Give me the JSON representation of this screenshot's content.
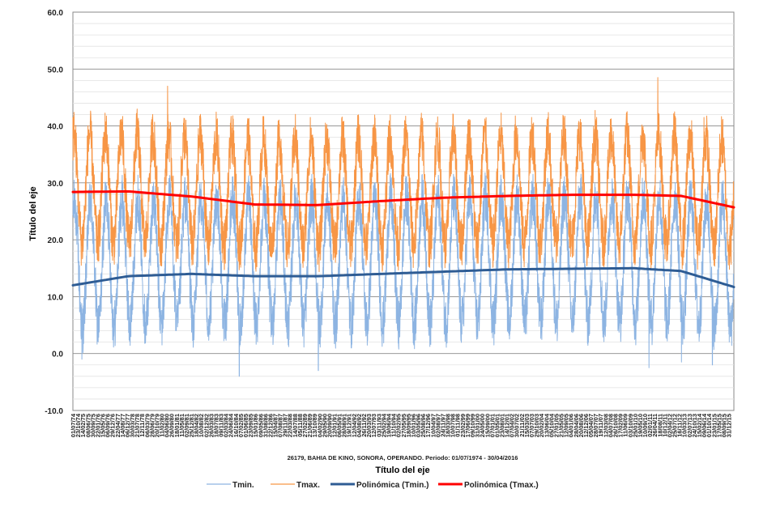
{
  "chart_data": {
    "type": "line",
    "title": "",
    "subtitle": "26179, BAHIA DE KINO, SONORA, OPERANDO. Periodo: 01/07/1974 - 30/04/2016",
    "xlabel": "Título del eje",
    "ylabel": "Título del eje",
    "ylim": [
      -10,
      60
    ],
    "yticks": [
      "60.0",
      "50.0",
      "40.0",
      "30.0",
      "20.0",
      "10.0",
      "0.0",
      "-10.0"
    ],
    "ytick_values": [
      60,
      50,
      40,
      30,
      20,
      10,
      0,
      -10
    ],
    "negative_tick_color": "#e00000",
    "x_range": [
      "01/07/74",
      "30/04/16"
    ],
    "x_ticks": [
      "01/07/74",
      "23/10/74",
      "14/02/75",
      "08/06/75",
      "30/09/75",
      "22/01/76",
      "15/05/76",
      "06/09/76",
      "29/12/76",
      "22/04/77",
      "14/08/77",
      "06/12/77",
      "30/03/78",
      "21/07/78",
      "12/11/78",
      "06/03/79",
      "28/06/79",
      "20/10/79",
      "11/02/80",
      "04/06/80",
      "26/09/80",
      "18/01/81",
      "11/05/81",
      "02/09/81",
      "25/12/81",
      "18/04/82",
      "10/08/82",
      "02/12/82",
      "26/03/83",
      "18/07/83",
      "09/11/83",
      "02/03/84",
      "24/06/84",
      "16/10/84",
      "07/02/85",
      "01/06/85",
      "23/09/85",
      "15/01/86",
      "09/05/86",
      "31/08/86",
      "22/12/86",
      "15/04/87",
      "07/08/87",
      "29/11/87",
      "22/03/88",
      "14/07/88",
      "05/11/88",
      "27/02/89",
      "21/06/89",
      "13/10/89",
      "04/02/90",
      "29/05/90",
      "20/09/90",
      "12/01/91",
      "06/05/91",
      "28/08/91",
      "19/12/91",
      "12/04/92",
      "04/08/92",
      "26/11/92",
      "20/03/93",
      "12/07/93",
      "03/11/93",
      "25/02/94",
      "19/06/94",
      "11/10/94",
      "02/02/95",
      "27/05/95",
      "18/09/95",
      "10/01/96",
      "03/05/96",
      "25/08/96",
      "17/12/96",
      "10/04/97",
      "02/08/97",
      "24/11/97",
      "18/03/98",
      "10/07/98",
      "01/11/98",
      "23/02/99",
      "17/06/99",
      "09/10/99",
      "31/01/00",
      "24/05/00",
      "15/09/00",
      "07/01/01",
      "01/05/01",
      "23/08/01",
      "14/12/01",
      "07/04/02",
      "30/07/02",
      "21/11/02",
      "15/03/03",
      "07/07/03",
      "29/10/03",
      "20/02/04",
      "13/06/04",
      "05/10/04",
      "27/01/05",
      "21/05/05",
      "12/09/05",
      "04/01/06",
      "28/04/06",
      "20/08/06",
      "12/12/06",
      "05/04/07",
      "28/07/07",
      "19/11/07",
      "12/03/08",
      "04/07/08",
      "26/10/08",
      "17/02/09",
      "11/06/09",
      "03/10/09",
      "25/01/10",
      "19/05/10",
      "10/09/10",
      "02/01/11",
      "26/04/11",
      "18/08/11",
      "10/12/11",
      "02/04/12",
      "25/07/12",
      "16/11/12",
      "10/03/13",
      "02/07/13",
      "24/10/13",
      "15/02/14",
      "09/06/14",
      "01/10/14",
      "23/01/15",
      "17/05/15",
      "08/09/15",
      "31/12/15"
    ],
    "x_tick_labels": [
      "01/07/74",
      "23/10/74",
      "14/02/75",
      "08/06/75",
      "30/09/75",
      "22/01/76",
      "15/05/76",
      "06/09/76",
      "29/12/76",
      "22/04/77",
      "14/08/77",
      "06/12/77",
      "30/03/78",
      "21/07/78",
      "12/11/78",
      "06/03/79",
      "28/06/79",
      "20/10/79",
      "11/02/80",
      "04/06/80",
      "26/09/80",
      "18/01/81",
      "11/05/81",
      "02/09/81",
      "25/12/81",
      "18/04/82",
      "10/08/82",
      "02/12/82",
      "26/03/83",
      "18/07/83",
      "09/11/83",
      "02/03/84",
      "24/06/84",
      "16/10/84",
      "07/02/85",
      "01/06/85",
      "23/09/85",
      "15/01/86",
      "09/05/86",
      "31/08/86",
      "22/12/86",
      "15/04/87",
      "07/08/87",
      "29/11/87",
      "22/03/88",
      "14/07/88",
      "05/11/88",
      "27/02/89",
      "21/06/89",
      "13/10/89",
      "04/02/90",
      "29/05/90",
      "20/09/90",
      "12/01/91",
      "06/05/91",
      "28/08/91",
      "19/12/91",
      "12/04/92",
      "04/08/92",
      "26/11/92",
      "20/03/93",
      "12/07/93",
      "03/11/93",
      "25/02/94",
      "19/06/94",
      "11/10/94",
      "02/02/95",
      "27/05/95",
      "18/09/95",
      "10/01/96",
      "03/05/96",
      "25/08/96",
      "17/12/96",
      "10/04/97",
      "02/08/97",
      "24/11/97",
      "18/03/98",
      "10/07/98",
      "01/11/98",
      "23/02/99",
      "17/06/99",
      "09/10/99",
      "31/01/00",
      "24/05/00",
      "15/09/00",
      "07/01/01",
      "01/05/01",
      "23/08/01",
      "14/12/01",
      "07/04/02",
      "30/07/02",
      "21/11/02",
      "15/03/03",
      "07/07/03",
      "29/10/03",
      "20/02/04",
      "13/06/04",
      "05/10/04",
      "27/01/05",
      "21/05/05",
      "12/09/05",
      "04/01/06",
      "28/04/06",
      "20/08/06",
      "12/12/06",
      "05/04/07",
      "28/07/07",
      "19/11/07",
      "12/03/08",
      "04/07/08",
      "26/10/08",
      "17/02/09",
      "11/06/09",
      "03/10/09",
      "25/01/10",
      "19/05/10",
      "10/09/10",
      "02/01/11",
      "26/04/11",
      "18/08/11",
      "10/12/11",
      "02/04/12",
      "25/07/12",
      "16/11/12",
      "10/03/13",
      "02/07/13",
      "24/10/13",
      "15/02/14",
      "09/06/14",
      "01/10/14",
      "23/01/15",
      "17/05/15",
      "08/09/15",
      "31/12/15"
    ],
    "grid": true,
    "legend_placement": "bottom",
    "series": [
      {
        "name": "Tmin.",
        "color": "#8db4e2",
        "kind": "daily",
        "approx_annual_range": [
          5,
          27
        ],
        "extremes": [
          {
            "date": "25/01/75",
            "value": -1.0
          },
          {
            "date": "10/01/85",
            "value": -4.0
          },
          {
            "date": "12/01/90",
            "value": -3.0
          },
          {
            "date": "15/12/10",
            "value": -2.5
          },
          {
            "date": "05/01/13",
            "value": -1.5
          },
          {
            "date": "20/12/14",
            "value": -2.0
          }
        ]
      },
      {
        "name": "Tmax.",
        "color": "#f79646",
        "kind": "daily",
        "approx_annual_range": [
          19,
          38
        ],
        "extremes": [
          {
            "date": "01/07/74",
            "value": 41.5
          },
          {
            "date": "28/06/80",
            "value": 47.0
          },
          {
            "date": "28/06/77",
            "value": 41.0
          },
          {
            "date": "20/06/84",
            "value": 40.5
          },
          {
            "date": "06/07/11",
            "value": 48.5
          },
          {
            "date": "10/06/14",
            "value": 41.5
          }
        ]
      },
      {
        "name": "Polinómica (Tmin.)",
        "color": "#2e5c94",
        "kind": "trend",
        "points": [
          {
            "x": "01/07/74",
            "y": 12.0
          },
          {
            "x": "01/01/78",
            "y": 13.6
          },
          {
            "x": "01/01/82",
            "y": 14.0
          },
          {
            "x": "01/01/86",
            "y": 13.6
          },
          {
            "x": "01/01/90",
            "y": 13.6
          },
          {
            "x": "01/01/94",
            "y": 14.0
          },
          {
            "x": "01/01/98",
            "y": 14.4
          },
          {
            "x": "01/01/02",
            "y": 14.8
          },
          {
            "x": "01/01/06",
            "y": 14.9
          },
          {
            "x": "01/01/10",
            "y": 15.0
          },
          {
            "x": "01/01/13",
            "y": 14.5
          },
          {
            "x": "30/04/16",
            "y": 11.7
          }
        ]
      },
      {
        "name": "Polinómica (Tmax.)",
        "color": "#ff0000",
        "kind": "trend",
        "points": [
          {
            "x": "01/07/74",
            "y": 28.4
          },
          {
            "x": "01/01/78",
            "y": 28.5
          },
          {
            "x": "01/01/82",
            "y": 27.6
          },
          {
            "x": "01/01/86",
            "y": 26.2
          },
          {
            "x": "01/01/90",
            "y": 26.1
          },
          {
            "x": "01/01/94",
            "y": 26.8
          },
          {
            "x": "01/01/98",
            "y": 27.4
          },
          {
            "x": "01/01/02",
            "y": 27.7
          },
          {
            "x": "01/01/06",
            "y": 27.9
          },
          {
            "x": "01/01/10",
            "y": 27.9
          },
          {
            "x": "01/01/13",
            "y": 27.7
          },
          {
            "x": "30/04/16",
            "y": 25.7
          }
        ]
      }
    ]
  }
}
